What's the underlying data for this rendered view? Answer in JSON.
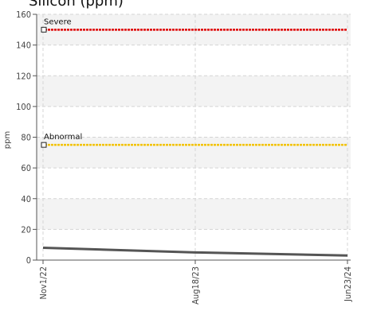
{
  "chart_data": {
    "type": "line",
    "title": "Silicon (ppm)",
    "ylabel": "ppm",
    "xlabel": "",
    "ylim": [
      0,
      160
    ],
    "yticks": [
      0,
      20,
      40,
      60,
      80,
      100,
      120,
      140,
      160
    ],
    "x_categories": [
      "Nov1/22",
      "Aug18/23",
      "Jun23/24"
    ],
    "grid": true,
    "series": [
      {
        "name": "",
        "color": "#555555",
        "x": [
          "Nov1/22",
          "Aug18/23",
          "Jun23/24"
        ],
        "values": [
          8,
          5,
          3
        ]
      }
    ],
    "thresholds": [
      {
        "label": "Severe",
        "value": 150,
        "color": "#dd0000"
      },
      {
        "label": "Abnormal",
        "value": 75,
        "color": "#f2c200"
      }
    ]
  }
}
